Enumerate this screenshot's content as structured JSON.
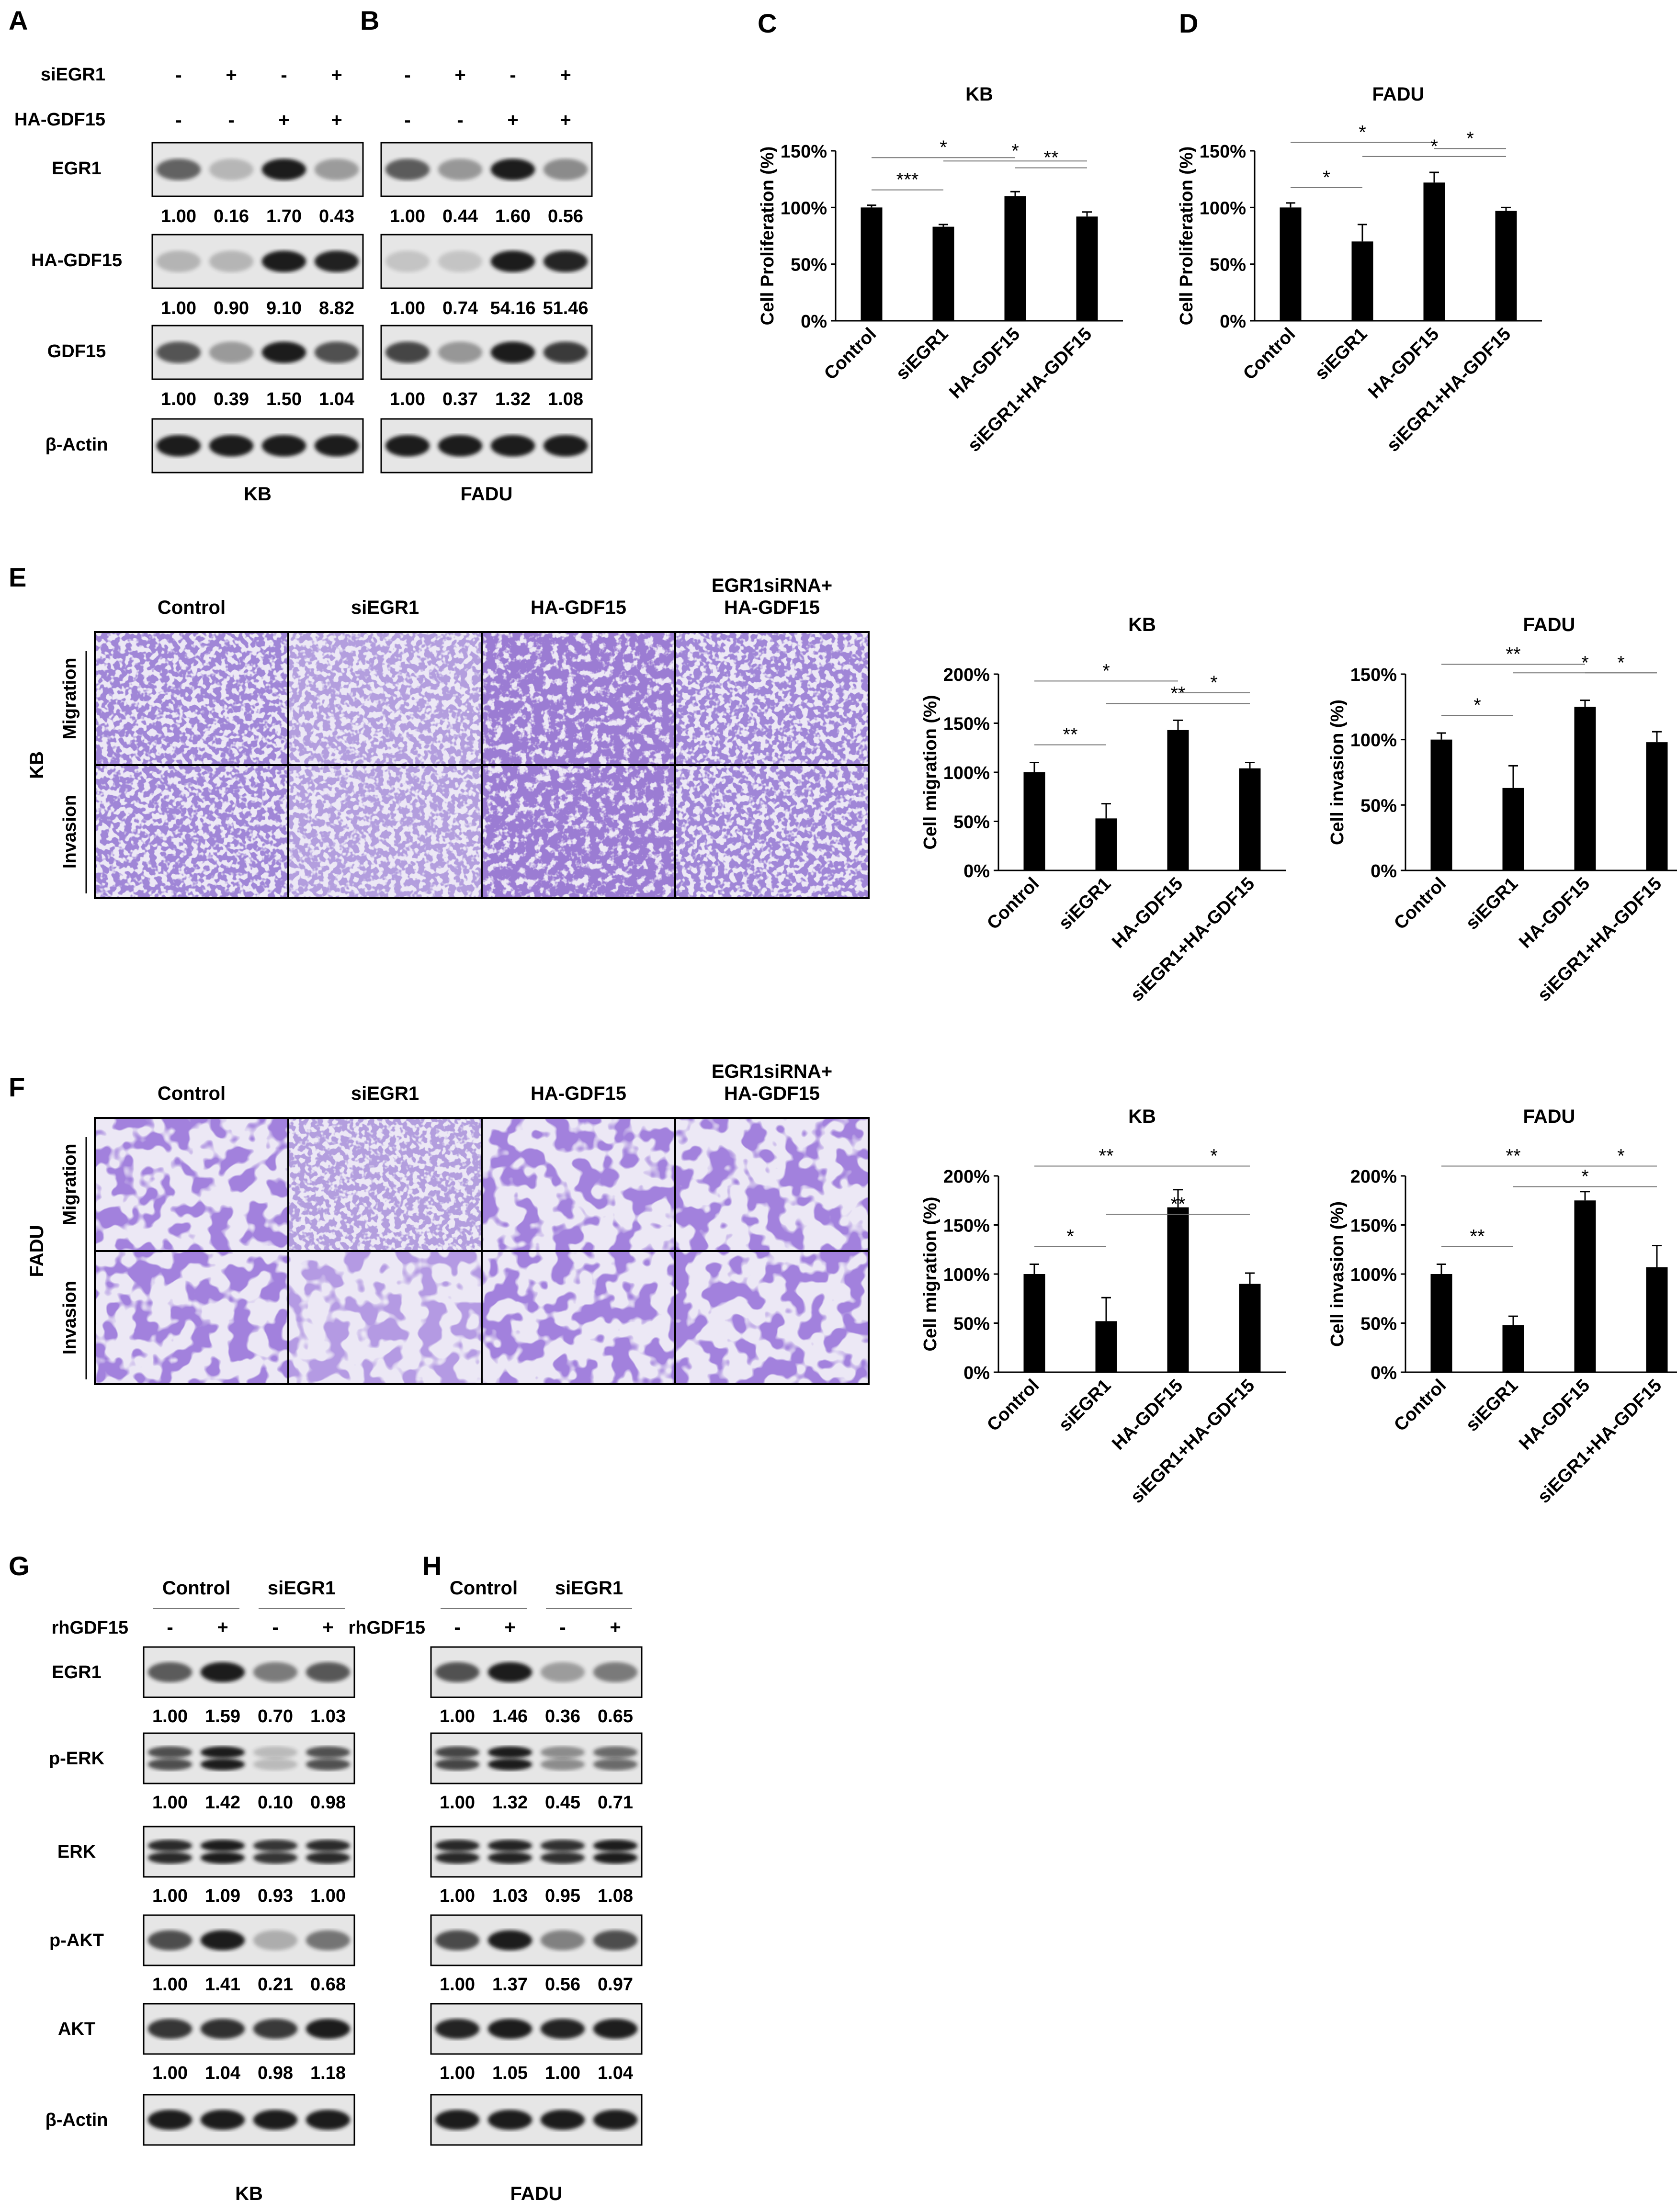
{
  "panel_letters": {
    "A": "A",
    "B": "B",
    "C": "C",
    "D": "D",
    "E": "E",
    "F": "F",
    "G": "G",
    "H": "H"
  },
  "colors": {
    "bar": "#000000",
    "stain": "#5a3fb0",
    "stain_bg": "#ece8f5",
    "blot_band": "#1a1a1a",
    "blot_bg": "#e6e6e6"
  },
  "blot_AB": {
    "rows": {
      "siEGR1": "siEGR1",
      "ha": "HA-GDF15"
    },
    "signs_siEGR1": [
      "-",
      "+",
      "-",
      "+"
    ],
    "signs_ha": [
      "-",
      "-",
      "+",
      "+"
    ],
    "blot_labels": [
      "EGR1",
      "HA-GDF15",
      "GDF15",
      "β-Actin"
    ],
    "kb_values": [
      [
        "1.00",
        "0.16",
        "1.70",
        "0.43"
      ],
      [
        "1.00",
        "0.90",
        "9.10",
        "8.82"
      ],
      [
        "1.00",
        "0.39",
        "1.50",
        "1.04"
      ]
    ],
    "fadu_values": [
      [
        "1.00",
        "0.44",
        "1.60",
        "0.56"
      ],
      [
        "1.00",
        "0.74",
        "54.16",
        "51.46"
      ],
      [
        "1.00",
        "0.37",
        "1.32",
        "1.08"
      ]
    ],
    "kb_caption": "KB",
    "fadu_caption": "FADU"
  },
  "stain_E": {
    "columns": [
      "Control",
      "siEGR1",
      "HA-GDF15",
      "EGR1siRNA+\nHA-GDF15"
    ],
    "cell_line": "KB",
    "rows": [
      "Migration",
      "Invasion"
    ]
  },
  "stain_F": {
    "columns": [
      "Control",
      "siEGR1",
      "HA-GDF15",
      "EGR1siRNA+\nHA-GDF15"
    ],
    "cell_line": "FADU",
    "rows": [
      "Migration",
      "Invasion"
    ]
  },
  "chart_data": [
    {
      "id": "C",
      "type": "bar",
      "title": "KB",
      "ylabel": "Cell Proliferation (%)",
      "categories": [
        "Control",
        "siEGR1",
        "HA-GDF15",
        "siEGR1+HA-GDF15"
      ],
      "values": [
        100,
        83,
        110,
        92
      ],
      "errors": [
        2,
        2,
        4,
        4
      ],
      "ylim": [
        0,
        150
      ],
      "yticks": [
        "0%",
        "50%",
        "100%",
        "150%"
      ],
      "sig": [
        {
          "a": 0,
          "b": 1,
          "label": "***"
        },
        {
          "a": 0,
          "b": 2,
          "label": "*"
        },
        {
          "a": 1,
          "b": 3,
          "label": "*"
        },
        {
          "a": 2,
          "b": 3,
          "label": "**"
        }
      ]
    },
    {
      "id": "D",
      "type": "bar",
      "title": "FADU",
      "ylabel": "Cell Proliferation (%)",
      "categories": [
        "Control",
        "siEGR1",
        "HA-GDF15",
        "siEGR1+HA-GDF15"
      ],
      "values": [
        100,
        70,
        122,
        97
      ],
      "errors": [
        4,
        15,
        9,
        3
      ],
      "ylim": [
        0,
        150
      ],
      "yticks": [
        "0%",
        "50%",
        "100%",
        "150%"
      ],
      "sig": [
        {
          "a": 0,
          "b": 1,
          "label": "*"
        },
        {
          "a": 0,
          "b": 2,
          "label": "*"
        },
        {
          "a": 1,
          "b": 3,
          "label": "*"
        },
        {
          "a": 2,
          "b": 3,
          "label": "*"
        }
      ]
    },
    {
      "id": "E1",
      "type": "bar",
      "title": "KB",
      "ylabel": "Cell migration (%)",
      "categories": [
        "Control",
        "siEGR1",
        "HA-GDF15",
        "siEGR1+HA-GDF15"
      ],
      "values": [
        100,
        53,
        143,
        104
      ],
      "errors": [
        10,
        15,
        10,
        6
      ],
      "ylim": [
        0,
        200
      ],
      "yticks": [
        "0%",
        "50%",
        "100%",
        "150%",
        "200%"
      ],
      "sig": [
        {
          "a": 0,
          "b": 1,
          "label": "**"
        },
        {
          "a": 0,
          "b": 2,
          "label": "*"
        },
        {
          "a": 1,
          "b": 3,
          "label": "**"
        },
        {
          "a": 2,
          "b": 3,
          "label": "*"
        }
      ]
    },
    {
      "id": "E2",
      "type": "bar",
      "title": "FADU",
      "ylabel": "Cell invasion (%)",
      "categories": [
        "Control",
        "siEGR1",
        "HA-GDF15",
        "siEGR1+HA-GDF15"
      ],
      "values": [
        100,
        63,
        125,
        98
      ],
      "errors": [
        5,
        17,
        5,
        8
      ],
      "ylim": [
        0,
        150
      ],
      "yticks": [
        "0%",
        "50%",
        "100%",
        "150%"
      ],
      "sig": [
        {
          "a": 0,
          "b": 1,
          "label": "*"
        },
        {
          "a": 0,
          "b": 2,
          "label": "**"
        },
        {
          "a": 1,
          "b": 3,
          "label": "*"
        },
        {
          "a": 2,
          "b": 3,
          "label": "*"
        }
      ]
    },
    {
      "id": "F1",
      "type": "bar",
      "title": "KB",
      "ylabel": "Cell migration (%)",
      "categories": [
        "Control",
        "siEGR1",
        "HA-GDF15",
        "siEGR1+HA-GDF15"
      ],
      "values": [
        100,
        52,
        168,
        90
      ],
      "errors": [
        10,
        24,
        18,
        11
      ],
      "ylim": [
        0,
        200
      ],
      "yticks": [
        "0%",
        "50%",
        "100%",
        "150%",
        "200%"
      ],
      "sig": [
        {
          "a": 0,
          "b": 1,
          "label": "*"
        },
        {
          "a": 0,
          "b": 2,
          "label": "**"
        },
        {
          "a": 1,
          "b": 3,
          "label": "**"
        },
        {
          "a": 2,
          "b": 3,
          "label": "*"
        }
      ]
    },
    {
      "id": "F2",
      "type": "bar",
      "title": "FADU",
      "ylabel": "Cell invasion (%)",
      "categories": [
        "Control",
        "siEGR1",
        "HA-GDF15",
        "siEGR1+HA-GDF15"
      ],
      "values": [
        100,
        48,
        175,
        107
      ],
      "errors": [
        10,
        9,
        9,
        22
      ],
      "ylim": [
        0,
        200
      ],
      "yticks": [
        "0%",
        "50%",
        "100%",
        "150%",
        "200%"
      ],
      "sig": [
        {
          "a": 0,
          "b": 1,
          "label": "**"
        },
        {
          "a": 0,
          "b": 2,
          "label": "**"
        },
        {
          "a": 1,
          "b": 3,
          "label": "*"
        },
        {
          "a": 2,
          "b": 3,
          "label": "*"
        }
      ]
    }
  ],
  "blot_GH": {
    "group_labels": [
      "Control",
      "siEGR1"
    ],
    "treatment": "rhGDF15",
    "signs": [
      "-",
      "+",
      "-",
      "+"
    ],
    "blot_labels": [
      "EGR1",
      "p-ERK",
      "ERK",
      "p-AKT",
      "AKT",
      "β-Actin"
    ],
    "kb_values": [
      [
        "1.00",
        "1.59",
        "0.70",
        "1.03"
      ],
      [
        "1.00",
        "1.42",
        "0.10",
        "0.98"
      ],
      [
        "1.00",
        "1.09",
        "0.93",
        "1.00"
      ],
      [
        "1.00",
        "1.41",
        "0.21",
        "0.68"
      ],
      [
        "1.00",
        "1.04",
        "0.98",
        "1.18"
      ]
    ],
    "fadu_values": [
      [
        "1.00",
        "1.46",
        "0.36",
        "0.65"
      ],
      [
        "1.00",
        "1.32",
        "0.45",
        "0.71"
      ],
      [
        "1.00",
        "1.03",
        "0.95",
        "1.08"
      ],
      [
        "1.00",
        "1.37",
        "0.56",
        "0.97"
      ],
      [
        "1.00",
        "1.05",
        "1.00",
        "1.04"
      ]
    ],
    "kb_caption": "KB",
    "fadu_caption": "FADU"
  }
}
